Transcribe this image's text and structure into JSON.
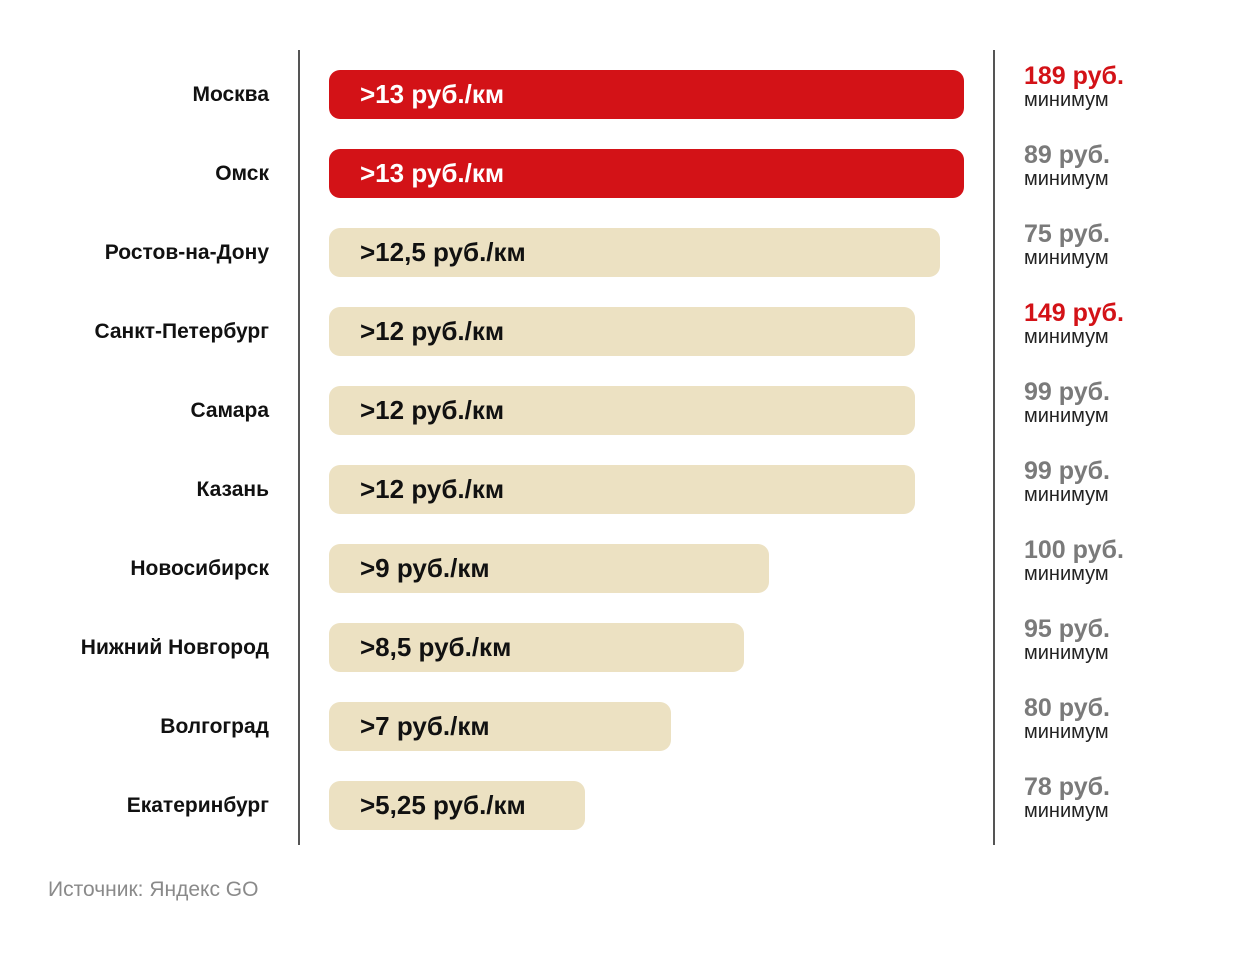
{
  "chart_data": {
    "type": "bar",
    "orientation": "horizontal",
    "title": "",
    "xlabel": "",
    "ylabel": "",
    "categories": [
      "Москва",
      "Омск",
      "Ростов-на-Дону",
      "Санкт-Петербург",
      "Самара",
      "Казань",
      "Новосибирск",
      "Нижний Новгород",
      "Волгоград",
      "Екатеринбург"
    ],
    "values": [
      13,
      13,
      12.5,
      12,
      12,
      12,
      9,
      8.5,
      7,
      5.25
    ],
    "unit": "руб./км",
    "xlim": [
      0,
      13
    ],
    "bar_labels": [
      ">13 руб./км",
      ">13 руб./км",
      ">12,5  руб./км",
      ">12  руб./км",
      ">12  руб./км",
      ">12  руб./км",
      ">9  руб./км",
      ">8,5  руб./км",
      ">7  руб./км",
      ">5,25  руб./км"
    ],
    "highlighted": [
      true,
      true,
      false,
      false,
      false,
      false,
      false,
      false,
      false,
      false
    ],
    "min_prices": [
      "189 руб.",
      "89 руб.",
      "75 руб.",
      "149 руб.",
      "99 руб.",
      "99 руб.",
      "100 руб.",
      "95 руб.",
      "80 руб.",
      "78 руб."
    ],
    "min_price_highlighted": [
      true,
      false,
      false,
      true,
      false,
      false,
      false,
      false,
      false,
      false
    ],
    "min_caption": "минимум",
    "source": "Источник: Яндекс GO",
    "colors": {
      "highlight": "#d31217",
      "bar": "#ece1c2",
      "price_muted": "#7a7a7a",
      "divider": "#555555"
    }
  }
}
